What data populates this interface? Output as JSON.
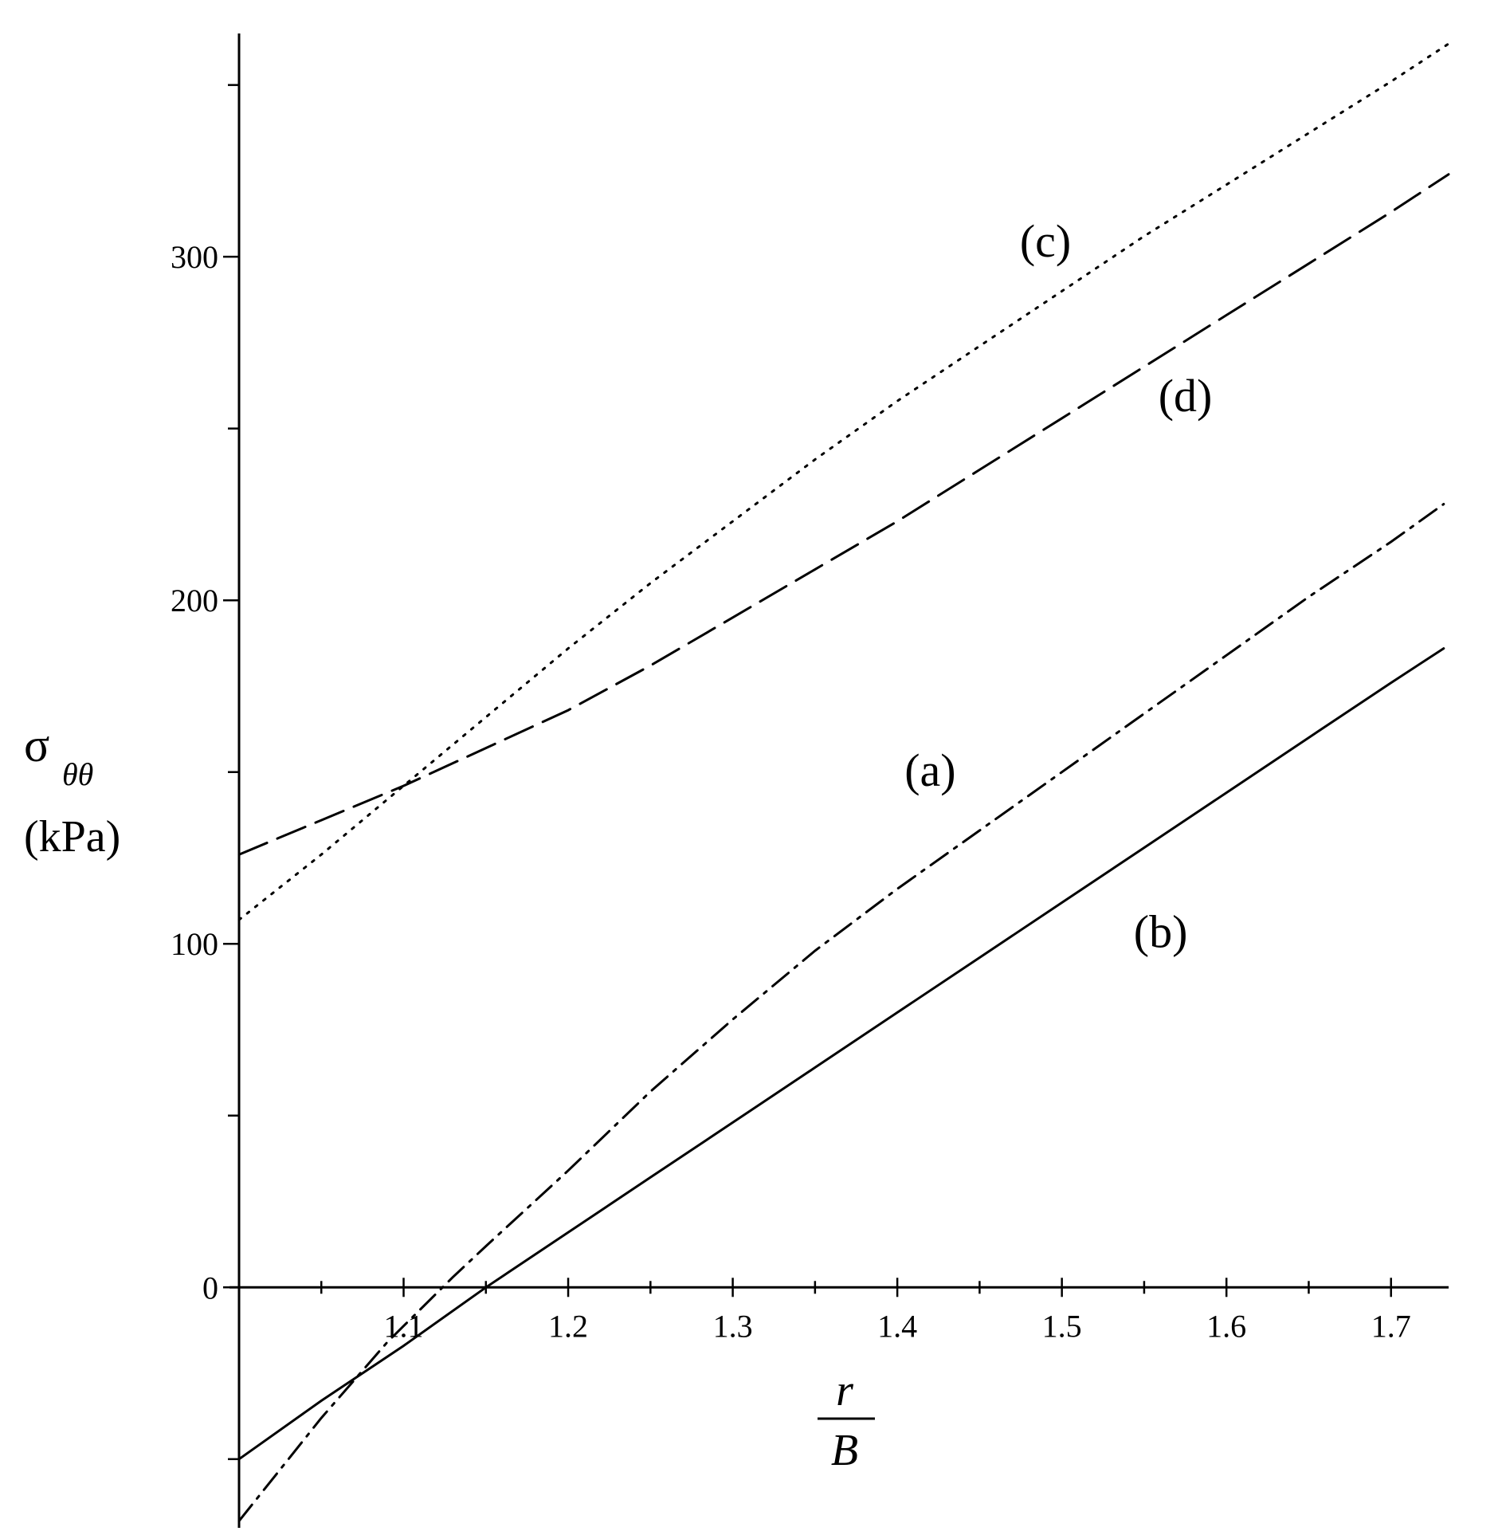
{
  "chart_data": {
    "type": "line",
    "title": "",
    "xlabel": {
      "numerator": "r",
      "denominator": "B"
    },
    "ylabel": {
      "symbol": "σ",
      "subscript": "θθ",
      "unit": "(kPa)"
    },
    "xlim": [
      1.0,
      1.735
    ],
    "ylim": [
      -70,
      365
    ],
    "x_ticks": [
      1.1,
      1.2,
      1.3,
      1.4,
      1.5,
      1.6,
      1.7
    ],
    "x_tick_labels": [
      "1.1",
      "1.2",
      "1.3",
      "1.4",
      "1.5",
      "1.6",
      "1.7"
    ],
    "x_minor_step": 0.05,
    "y_ticks": [
      0,
      100,
      200,
      300
    ],
    "y_tick_labels": [
      "0",
      "100",
      "200",
      "300"
    ],
    "y_minor_step": 50,
    "grid": false,
    "series": [
      {
        "name": "(a)",
        "style": "dashdot",
        "label_at": [
          1.42,
          146
        ],
        "x": [
          1.0,
          1.05,
          1.09,
          1.13,
          1.15,
          1.2,
          1.25,
          1.3,
          1.35,
          1.4,
          1.45,
          1.5,
          1.55,
          1.6,
          1.65,
          1.7,
          1.732
        ],
        "y": [
          -68,
          -38,
          -16,
          3,
          12,
          34,
          57,
          78,
          98,
          116,
          133,
          150,
          167,
          184,
          201,
          217,
          228
        ]
      },
      {
        "name": "(b)",
        "style": "solid",
        "label_at": [
          1.56,
          99
        ],
        "x": [
          1.0,
          1.05,
          1.1,
          1.15,
          1.2,
          1.25,
          1.3,
          1.35,
          1.4,
          1.45,
          1.5,
          1.55,
          1.6,
          1.65,
          1.7,
          1.732
        ],
        "y": [
          -50,
          -33,
          -17,
          0,
          16,
          32,
          48,
          64,
          80,
          96,
          112,
          128,
          144,
          160,
          176,
          186
        ]
      },
      {
        "name": "(c)",
        "style": "dotted",
        "label_at": [
          1.49,
          300
        ],
        "x": [
          1.0,
          1.05,
          1.09,
          1.1,
          1.15,
          1.2,
          1.25,
          1.3,
          1.35,
          1.4,
          1.45,
          1.5,
          1.55,
          1.6,
          1.65,
          1.7,
          1.735
        ],
        "y": [
          107,
          126,
          142,
          146,
          166,
          186,
          205,
          223,
          241,
          258,
          274,
          290,
          306,
          321,
          336,
          351,
          362
        ]
      },
      {
        "name": "(d)",
        "style": "dashed",
        "label_at": [
          1.575,
          255
        ],
        "x": [
          1.0,
          1.05,
          1.1,
          1.15,
          1.2,
          1.25,
          1.3,
          1.35,
          1.4,
          1.45,
          1.5,
          1.55,
          1.6,
          1.65,
          1.7,
          1.735
        ],
        "y": [
          126,
          136,
          146,
          157,
          168,
          181,
          195,
          209,
          223,
          238,
          253,
          268,
          283,
          298,
          313,
          324
        ]
      }
    ]
  }
}
